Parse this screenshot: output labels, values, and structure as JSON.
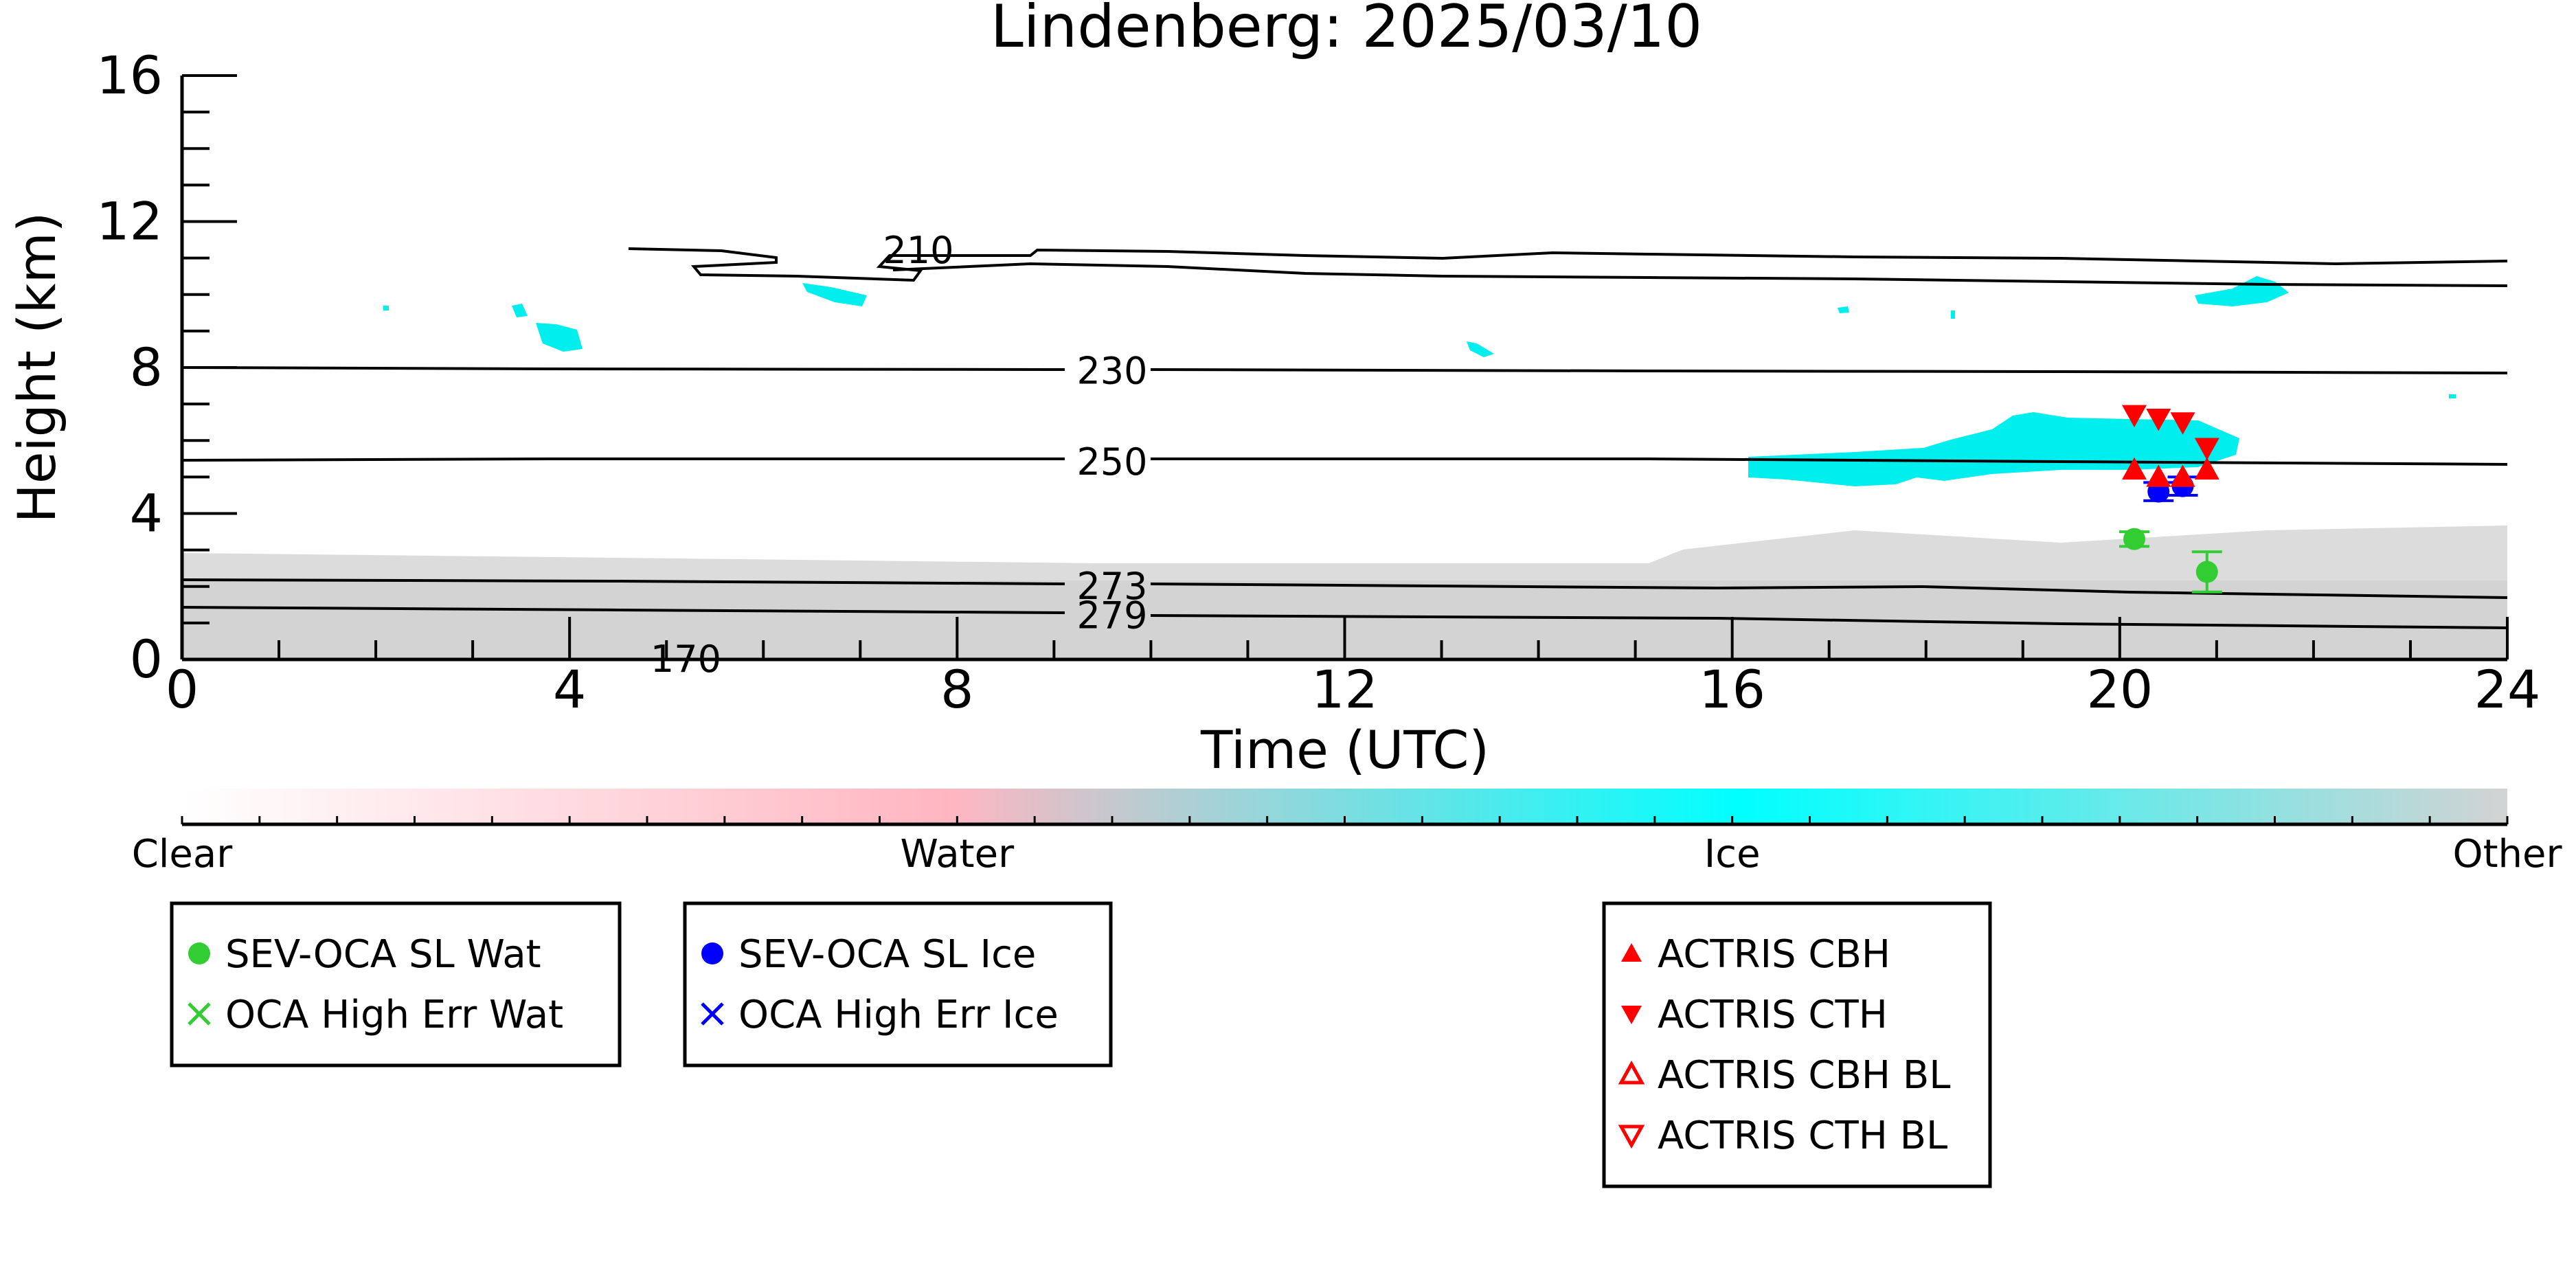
{
  "chart_data": {
    "type": "scatter",
    "title": "Lindenberg: 2025/03/10",
    "xlabel": "Time (UTC)",
    "ylabel": "Height (km)",
    "xlim": [
      0,
      24
    ],
    "ylim": [
      0,
      16
    ],
    "xticks": [
      "0",
      "4",
      "8",
      "12",
      "16",
      "20",
      "24"
    ],
    "yticks": [
      "0",
      "4",
      "8",
      "12",
      "16"
    ],
    "colorbar": {
      "labels": [
        "Clear",
        "Water",
        "Ice",
        "Other"
      ],
      "colors": [
        "#ffffff",
        "#ffb6c1",
        "#00ffff",
        "#d3d3d3"
      ]
    },
    "contours": [
      {
        "label": "210",
        "label_x": 7.6,
        "label_y": 11.2
      },
      {
        "label": "230",
        "label_x": 9.6,
        "label_y": 7.9
      },
      {
        "label": "250",
        "label_x": 9.6,
        "label_y": 5.4
      },
      {
        "label": "273",
        "label_x": 9.6,
        "label_y": 2.0
      },
      {
        "label": "279",
        "label_x": 9.6,
        "label_y": 1.2
      },
      {
        "label": "170",
        "label_x": 5.2,
        "label_y": 0.0
      }
    ],
    "series": [
      {
        "name": "SEV-OCA SL Wat",
        "color": "#32cd32",
        "marker": "circle",
        "points": [
          {
            "x": 20.15,
            "y": 3.3,
            "err": 0.2
          },
          {
            "x": 20.9,
            "y": 2.4,
            "err": 0.55
          }
        ]
      },
      {
        "name": "OCA High Err Wat",
        "color": "#32cd32",
        "marker": "x",
        "points": []
      },
      {
        "name": "SEV-OCA SL Ice",
        "color": "#0000ff",
        "marker": "circle",
        "points": [
          {
            "x": 20.4,
            "y": 4.6,
            "err": 0.25
          },
          {
            "x": 20.65,
            "y": 4.75,
            "err": 0.25
          }
        ]
      },
      {
        "name": "OCA High Err Ice",
        "color": "#0000ff",
        "marker": "x",
        "points": []
      },
      {
        "name": "ACTRIS CBH",
        "color": "#ff0000",
        "marker": "triangle-up",
        "points": [
          {
            "x": 20.15,
            "y": 5.2
          },
          {
            "x": 20.4,
            "y": 5.0
          },
          {
            "x": 20.65,
            "y": 5.0
          },
          {
            "x": 20.9,
            "y": 5.2
          }
        ]
      },
      {
        "name": "ACTRIS CTH",
        "color": "#ff0000",
        "marker": "triangle-down",
        "points": [
          {
            "x": 20.15,
            "y": 6.7
          },
          {
            "x": 20.4,
            "y": 6.6
          },
          {
            "x": 20.65,
            "y": 6.5
          },
          {
            "x": 20.9,
            "y": 5.8
          }
        ]
      },
      {
        "name": "ACTRIS CBH BL",
        "color": "#ff0000",
        "marker": "triangle-up-open",
        "points": []
      },
      {
        "name": "ACTRIS CTH BL",
        "color": "#ff0000",
        "marker": "triangle-down-open",
        "points": []
      }
    ]
  }
}
